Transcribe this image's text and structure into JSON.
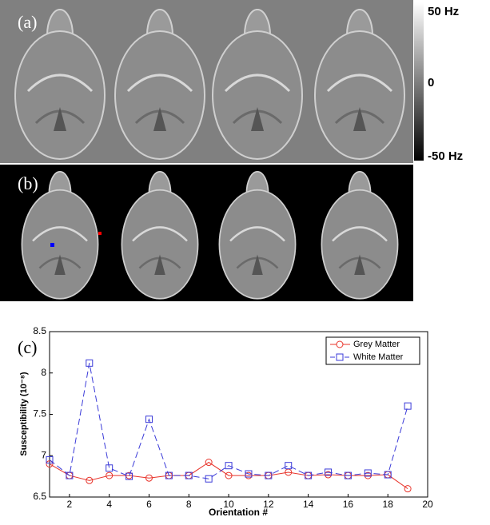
{
  "panel_labels": [
    "(a)",
    "(b)",
    "(c)"
  ],
  "colorbar": {
    "labels": [
      "50 Hz",
      "0",
      "-50 Hz"
    ]
  },
  "chart_data": {
    "type": "line",
    "xlabel": "Orientation #",
    "ylabel": "Susceptibility (10⁻⁸)",
    "x": [
      1,
      2,
      3,
      4,
      5,
      6,
      7,
      8,
      9,
      10,
      11,
      12,
      13,
      14,
      15,
      16,
      17,
      18,
      19
    ],
    "series": [
      {
        "name": "Grey Matter",
        "color": "#e8332a",
        "marker": "circle",
        "dash": false,
        "values": [
          6.9,
          6.76,
          6.7,
          6.76,
          6.76,
          6.73,
          6.76,
          6.76,
          6.92,
          6.76,
          6.76,
          6.76,
          6.8,
          6.76,
          6.77,
          6.76,
          6.76,
          6.77,
          6.6
        ]
      },
      {
        "name": "White Matter",
        "color": "#3a3ad8",
        "marker": "square",
        "dash": true,
        "values": [
          6.95,
          6.76,
          8.12,
          6.85,
          6.75,
          7.44,
          6.76,
          6.76,
          6.72,
          6.88,
          6.78,
          6.76,
          6.88,
          6.76,
          6.8,
          6.76,
          6.79,
          6.77,
          7.6
        ]
      }
    ],
    "xlim": [
      1,
      20
    ],
    "xticks": [
      2,
      4,
      6,
      8,
      10,
      12,
      14,
      16,
      18,
      20
    ],
    "ylim": [
      6.5,
      8.5
    ],
    "yticks": [
      6.5,
      7,
      7.5,
      8,
      8.5
    ],
    "legend": "upper right"
  }
}
